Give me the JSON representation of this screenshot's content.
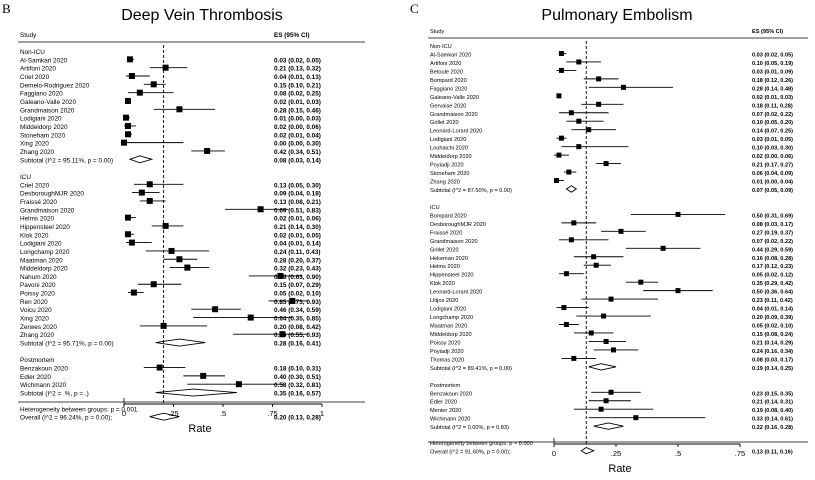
{
  "chart_data": [
    {
      "type": "forest",
      "panel_label": "B",
      "title": "Deep Vein Thrombosis",
      "col_study": "Study",
      "col_es": "ES (95% CI)",
      "xlabel": "Rate",
      "xticks": [
        "0",
        ".25",
        ".5",
        ".75",
        "1"
      ],
      "xlim": [
        0,
        1
      ],
      "reference_line": 0.2,
      "groups": [
        {
          "name": "Non-ICU",
          "studies": [
            {
              "label": "Al-Samkari 2020",
              "es": 0.03,
              "lo": 0.02,
              "hi": 0.05,
              "text": "0.03 (0.02, 0.05)"
            },
            {
              "label": "Artifoni 2020",
              "es": 0.21,
              "lo": 0.13,
              "hi": 0.32,
              "text": "0.21 (0.13, 0.32)"
            },
            {
              "label": "Criel 2020",
              "es": 0.04,
              "lo": 0.01,
              "hi": 0.13,
              "text": "0.04 (0.01, 0.13)"
            },
            {
              "label": "Demelo-Rodriguez 2020",
              "es": 0.15,
              "lo": 0.1,
              "hi": 0.21,
              "text": "0.15 (0.10, 0.21)"
            },
            {
              "label": "Faggiano 2020",
              "es": 0.08,
              "lo": 0.02,
              "hi": 0.25,
              "text": "0.08 (0.02, 0.25)"
            },
            {
              "label": "Galeano-Valle 2020",
              "es": 0.02,
              "lo": 0.01,
              "hi": 0.03,
              "text": "0.02 (0.01, 0.03)"
            },
            {
              "label": "Grandmaison 2020",
              "es": 0.28,
              "lo": 0.15,
              "hi": 0.46,
              "text": "0.28 (0.15, 0.46)"
            },
            {
              "label": "Lodigiani 2020",
              "es": 0.01,
              "lo": 0.0,
              "hi": 0.03,
              "text": "0.01 (0.00, 0.03)"
            },
            {
              "label": "Middeldorp 2020",
              "es": 0.02,
              "lo": 0.0,
              "hi": 0.06,
              "text": "0.02 (0.00, 0.06)"
            },
            {
              "label": "Stoneham 2020",
              "es": 0.02,
              "lo": 0.01,
              "hi": 0.04,
              "text": "0.02 (0.01, 0.04)"
            },
            {
              "label": "Xing 2020",
              "es": 0.0,
              "lo": 0.0,
              "hi": 0.3,
              "text": "0.00 (0.00, 0.30)"
            },
            {
              "label": "Zhang 2020",
              "es": 0.42,
              "lo": 0.34,
              "hi": 0.51,
              "text": "0.42 (0.34, 0.51)"
            }
          ],
          "subtotal": {
            "label": "Subtotal  (I^2 = 95.11%, p = 0.00)",
            "es": 0.08,
            "lo": 0.03,
            "hi": 0.14,
            "text": "0.08 (0.03, 0.14)"
          }
        },
        {
          "name": "ICU",
          "studies": [
            {
              "label": "Criel 2020",
              "es": 0.13,
              "lo": 0.05,
              "hi": 0.3,
              "text": "0.13 (0.05, 0.30)"
            },
            {
              "label": "DesboroughMJR 2020",
              "es": 0.09,
              "lo": 0.04,
              "hi": 0.18,
              "text": "0.09 (0.04, 0.18)"
            },
            {
              "label": "Fraissé 2020",
              "es": 0.13,
              "lo": 0.08,
              "hi": 0.21,
              "text": "0.13 (0.08, 0.21)"
            },
            {
              "label": "Grandmaison 2020",
              "es": 0.69,
              "lo": 0.51,
              "hi": 0.83,
              "text": "0.69 (0.51, 0.83)"
            },
            {
              "label": "Helms 2020",
              "es": 0.02,
              "lo": 0.01,
              "hi": 0.06,
              "text": "0.02 (0.01, 0.06)"
            },
            {
              "label": "Hippensteel 2020",
              "es": 0.21,
              "lo": 0.14,
              "hi": 0.3,
              "text": "0.21 (0.14, 0.30)"
            },
            {
              "label": "Klok 2020",
              "es": 0.02,
              "lo": 0.01,
              "hi": 0.05,
              "text": "0.02 (0.01, 0.05)"
            },
            {
              "label": "Lodigiani 2020",
              "es": 0.04,
              "lo": 0.01,
              "hi": 0.14,
              "text": "0.04 (0.01, 0.14)"
            },
            {
              "label": "Longchamp 2020",
              "es": 0.24,
              "lo": 0.11,
              "hi": 0.43,
              "text": "0.24 (0.11, 0.43)"
            },
            {
              "label": "Maatman 2020",
              "es": 0.28,
              "lo": 0.2,
              "hi": 0.37,
              "text": "0.28 (0.20, 0.37)"
            },
            {
              "label": "Middeldorp 2020",
              "es": 0.32,
              "lo": 0.23,
              "hi": 0.43,
              "text": "0.32 (0.23, 0.43)"
            },
            {
              "label": "Nahum 2020",
              "es": 0.79,
              "lo": 0.63,
              "hi": 0.9,
              "text": "0.79 (0.63, 0.90)"
            },
            {
              "label": "Pavoni 2020",
              "es": 0.15,
              "lo": 0.07,
              "hi": 0.29,
              "text": "0.15 (0.07, 0.29)"
            },
            {
              "label": "Poissy 2020",
              "es": 0.05,
              "lo": 0.02,
              "hi": 0.1,
              "text": "0.05 (0.02, 0.10)"
            },
            {
              "label": "Ren 2020",
              "es": 0.85,
              "lo": 0.73,
              "hi": 0.93,
              "text": "0.85 (0.73, 0.93)"
            },
            {
              "label": "Voicu 2020",
              "es": 0.46,
              "lo": 0.34,
              "hi": 0.59,
              "text": "0.46 (0.34, 0.59)"
            },
            {
              "label": "Xing 2020",
              "es": 0.64,
              "lo": 0.35,
              "hi": 0.85,
              "text": "0.64 (0.35, 0.85)"
            },
            {
              "label": "Zerwes 2020",
              "es": 0.2,
              "lo": 0.08,
              "hi": 0.42,
              "text": "0.20 (0.08, 0.42)"
            },
            {
              "label": "Zhang 2020",
              "es": 0.8,
              "lo": 0.55,
              "hi": 0.93,
              "text": "0.80 (0.55, 0.93)"
            }
          ],
          "subtotal": {
            "label": "Subtotal  (I^2 = 95.71%, p = 0.00)",
            "es": 0.28,
            "lo": 0.16,
            "hi": 0.41,
            "text": "0.28 (0.16, 0.41)"
          }
        },
        {
          "name": "Postmortem",
          "studies": [
            {
              "label": "Benzakoun 2020",
              "es": 0.18,
              "lo": 0.1,
              "hi": 0.31,
              "text": "0.18 (0.10, 0.31)"
            },
            {
              "label": "Edler 2020",
              "es": 0.4,
              "lo": 0.3,
              "hi": 0.51,
              "text": "0.40 (0.30, 0.51)"
            },
            {
              "label": "Wichmann 2020",
              "es": 0.58,
              "lo": 0.32,
              "hi": 0.81,
              "text": "0.58 (0.32, 0.81)"
            }
          ],
          "subtotal": {
            "label": "Subtotal  (I^2 = .%, p = .)",
            "es": 0.35,
            "lo": 0.16,
            "hi": 0.57,
            "text": "0.35 (0.16, 0.57)"
          }
        }
      ],
      "heterogeneity": "Heterogeneity between groups: p = 0.001",
      "overall": {
        "label": "Overall  (I^2 = 96.24%, p = 0.00);",
        "es": 0.2,
        "lo": 0.13,
        "hi": 0.28,
        "text": "0.20 (0.13, 0.28)"
      }
    },
    {
      "type": "forest",
      "panel_label": "C",
      "title": "Pulmonary Embolism",
      "col_study": "Study",
      "col_es": "ES (95% CI)",
      "xlabel": "Rate",
      "xticks": [
        "0",
        ".25",
        ".5",
        ".75"
      ],
      "xlim": [
        0,
        0.75
      ],
      "reference_line": 0.13,
      "groups": [
        {
          "name": "Non-ICU",
          "studies": [
            {
              "label": "Al-Samkari 2020",
              "es": 0.03,
              "lo": 0.02,
              "hi": 0.05,
              "text": "0.03 (0.02, 0.05)"
            },
            {
              "label": "Artifoni 2020",
              "es": 0.1,
              "lo": 0.05,
              "hi": 0.19,
              "text": "0.10 (0.05, 0.19)"
            },
            {
              "label": "Betoule 2020",
              "es": 0.03,
              "lo": 0.01,
              "hi": 0.09,
              "text": "0.03 (0.01, 0.09)"
            },
            {
              "label": "Bompard 2020",
              "es": 0.18,
              "lo": 0.12,
              "hi": 0.26,
              "text": "0.18 (0.12, 0.26)"
            },
            {
              "label": "Faggiano 2020",
              "es": 0.28,
              "lo": 0.14,
              "hi": 0.48,
              "text": "0.28 (0.14, 0.48)"
            },
            {
              "label": "Galeano-Valle 2020",
              "es": 0.02,
              "lo": 0.01,
              "hi": 0.03,
              "text": "0.02 (0.01, 0.03)"
            },
            {
              "label": "Gervaise 2020",
              "es": 0.18,
              "lo": 0.11,
              "hi": 0.28,
              "text": "0.18 (0.11, 0.28)"
            },
            {
              "label": "Grandmaison 2020",
              "es": 0.07,
              "lo": 0.02,
              "hi": 0.22,
              "text": "0.07 (0.02, 0.22)"
            },
            {
              "label": "Grillet 2020",
              "es": 0.1,
              "lo": 0.05,
              "hi": 0.2,
              "text": "0.10 (0.05, 0.20)"
            },
            {
              "label": "Leonard-Lorant 2020",
              "es": 0.14,
              "lo": 0.07,
              "hi": 0.25,
              "text": "0.14 (0.07, 0.25)"
            },
            {
              "label": "Lodigiani 2020",
              "es": 0.03,
              "lo": 0.01,
              "hi": 0.05,
              "text": "0.03 (0.01, 0.05)"
            },
            {
              "label": "Louhaichi 2020",
              "es": 0.1,
              "lo": 0.03,
              "hi": 0.3,
              "text": "0.10 (0.03, 0.30)"
            },
            {
              "label": "Middeldorp 2020",
              "es": 0.02,
              "lo": 0.0,
              "hi": 0.06,
              "text": "0.02 (0.00, 0.06)"
            },
            {
              "label": "Poyiadji 2020",
              "es": 0.21,
              "lo": 0.17,
              "hi": 0.27,
              "text": "0.21 (0.17, 0.27)"
            },
            {
              "label": "Stoneham 2020",
              "es": 0.06,
              "lo": 0.04,
              "hi": 0.09,
              "text": "0.06 (0.04, 0.09)"
            },
            {
              "label": "Zhang 2020",
              "es": 0.01,
              "lo": 0.0,
              "hi": 0.04,
              "text": "0.01 (0.00, 0.04)"
            }
          ],
          "subtotal": {
            "label": "Subtotal  (I^2 = 87.50%, p = 0.00)",
            "es": 0.07,
            "lo": 0.05,
            "hi": 0.09,
            "text": "0.07 (0.05, 0.09)"
          }
        },
        {
          "name": "ICU",
          "studies": [
            {
              "label": "Bompard 2020",
              "es": 0.5,
              "lo": 0.31,
              "hi": 0.69,
              "text": "0.50 (0.31, 0.69)"
            },
            {
              "label": "DesboroughMJR 2020",
              "es": 0.08,
              "lo": 0.03,
              "hi": 0.17,
              "text": "0.08 (0.03, 0.17)"
            },
            {
              "label": "Fraissé 2020",
              "es": 0.27,
              "lo": 0.19,
              "hi": 0.37,
              "text": "0.27 (0.19, 0.37)"
            },
            {
              "label": "Grandmaison 2020",
              "es": 0.07,
              "lo": 0.02,
              "hi": 0.22,
              "text": "0.07 (0.02, 0.22)"
            },
            {
              "label": "Grillet 2020",
              "es": 0.44,
              "lo": 0.29,
              "hi": 0.59,
              "text": "0.44 (0.29, 0.59)"
            },
            {
              "label": "Hekeman 2020",
              "es": 0.16,
              "lo": 0.08,
              "hi": 0.28,
              "text": "0.16 (0.08, 0.28)"
            },
            {
              "label": "Helms 2020",
              "es": 0.17,
              "lo": 0.12,
              "hi": 0.23,
              "text": "0.17 (0.12, 0.23)"
            },
            {
              "label": "Hippensteel 2020",
              "es": 0.05,
              "lo": 0.02,
              "hi": 0.12,
              "text": "0.05 (0.02, 0.12)"
            },
            {
              "label": "Klok 2020",
              "es": 0.35,
              "lo": 0.29,
              "hi": 0.42,
              "text": "0.35 (0.29, 0.42)"
            },
            {
              "label": "Leonard-Lorant 2020",
              "es": 0.5,
              "lo": 0.36,
              "hi": 0.64,
              "text": "0.50 (0.36, 0.64)"
            },
            {
              "label": "Llitjos 2020",
              "es": 0.23,
              "lo": 0.11,
              "hi": 0.42,
              "text": "0.23 (0.11, 0.42)"
            },
            {
              "label": "Lodigiani 2020",
              "es": 0.04,
              "lo": 0.01,
              "hi": 0.14,
              "text": "0.04 (0.01, 0.14)"
            },
            {
              "label": "Longchamp 2020",
              "es": 0.2,
              "lo": 0.09,
              "hi": 0.39,
              "text": "0.20 (0.09, 0.39)"
            },
            {
              "label": "Maatman 2020",
              "es": 0.05,
              "lo": 0.02,
              "hi": 0.1,
              "text": "0.05 (0.02, 0.10)"
            },
            {
              "label": "Middeldorp 2020",
              "es": 0.15,
              "lo": 0.08,
              "hi": 0.24,
              "text": "0.15 (0.08, 0.24)"
            },
            {
              "label": "Poissy 2020",
              "es": 0.21,
              "lo": 0.14,
              "hi": 0.29,
              "text": "0.21 (0.14, 0.29)"
            },
            {
              "label": "Poyiadji 2020",
              "es": 0.24,
              "lo": 0.16,
              "hi": 0.34,
              "text": "0.24 (0.16, 0.34)"
            },
            {
              "label": "Thomas 2020",
              "es": 0.08,
              "lo": 0.03,
              "hi": 0.17,
              "text": "0.08 (0.03, 0.17)"
            }
          ],
          "subtotal": {
            "label": "Subtotal  (I^2 = 89.41%, p = 0.00)",
            "es": 0.19,
            "lo": 0.14,
            "hi": 0.25,
            "text": "0.19 (0.14, 0.25)"
          }
        },
        {
          "name": "Postmortem",
          "studies": [
            {
              "label": "Benzakoun 2020",
              "es": 0.23,
              "lo": 0.15,
              "hi": 0.35,
              "text": "0.23 (0.15, 0.35)"
            },
            {
              "label": "Edler 2020",
              "es": 0.21,
              "lo": 0.14,
              "hi": 0.31,
              "text": "0.21 (0.14, 0.31)"
            },
            {
              "label": "Menter 2020",
              "es": 0.19,
              "lo": 0.08,
              "hi": 0.4,
              "text": "0.19 (0.08, 0.40)"
            },
            {
              "label": "Wichmann 2020",
              "es": 0.33,
              "lo": 0.14,
              "hi": 0.61,
              "text": "0.33 (0.14, 0.61)"
            }
          ],
          "subtotal": {
            "label": "Subtotal  (I^2 = 0.00%, p = 0.83)",
            "es": 0.22,
            "lo": 0.16,
            "hi": 0.28,
            "text": "0.22 (0.16, 0.28)"
          }
        }
      ],
      "heterogeneity": "Heterogeneity between groups: p = 0.000",
      "overall": {
        "label": "Overall  (I^2 = 91.60%, p = 0.00);",
        "es": 0.13,
        "lo": 0.11,
        "hi": 0.16,
        "text": "0.13 (0.11, 0.16)"
      }
    }
  ]
}
